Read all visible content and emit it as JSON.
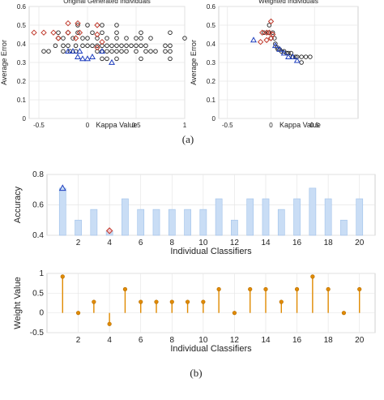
{
  "captions": {
    "a": "(a)",
    "b": "(b)"
  },
  "colors": {
    "black_marker": "#222222",
    "red_marker": "#c0392b",
    "blue_marker": "#1f3fbf",
    "bar_fill": "#c9ddf5",
    "bar_edge": "#9fc1ea",
    "stem": "#e08a00",
    "grid": "#e6e6e6"
  },
  "chart_data": [
    {
      "id": "scatter_original",
      "type": "scatter",
      "title": "Original Generated Individuals",
      "xlabel": "Kappa Value",
      "ylabel": "Average Error",
      "xlim": [
        -0.6,
        1
      ],
      "ylim": [
        0,
        0.6
      ],
      "xticks": [
        -0.5,
        0,
        0.5,
        1
      ],
      "xtick_labels": [
        "-0.5",
        "0",
        "0.5",
        "1"
      ],
      "yticks": [
        0,
        0.1,
        0.2,
        0.3,
        0.4,
        0.5,
        0.6
      ],
      "ytick_labels": [
        "0",
        "0.1",
        "0.2",
        "0.3",
        "0.4",
        "0.5",
        "0.6"
      ],
      "grid": true,
      "series": [
        {
          "marker": "circle",
          "color": "black",
          "points": [
            [
              -0.1,
              0.5
            ],
            [
              0,
              0.5
            ],
            [
              0.15,
              0.5
            ],
            [
              0.3,
              0.5
            ],
            [
              -0.3,
              0.46
            ],
            [
              -0.2,
              0.46
            ],
            [
              -0.1,
              0.46
            ],
            [
              0.05,
              0.46
            ],
            [
              0.15,
              0.46
            ],
            [
              0.3,
              0.46
            ],
            [
              0.55,
              0.46
            ],
            [
              0.85,
              0.46
            ],
            [
              -0.3,
              0.43
            ],
            [
              -0.25,
              0.43
            ],
            [
              -0.15,
              0.43
            ],
            [
              -0.05,
              0.43
            ],
            [
              0.0,
              0.43
            ],
            [
              0.1,
              0.43
            ],
            [
              0.2,
              0.43
            ],
            [
              0.3,
              0.43
            ],
            [
              0.4,
              0.43
            ],
            [
              0.5,
              0.43
            ],
            [
              0.55,
              0.43
            ],
            [
              0.65,
              0.43
            ],
            [
              1.0,
              0.43
            ],
            [
              -0.33,
              0.39
            ],
            [
              -0.25,
              0.39
            ],
            [
              -0.2,
              0.39
            ],
            [
              -0.12,
              0.39
            ],
            [
              -0.05,
              0.39
            ],
            [
              0.0,
              0.39
            ],
            [
              0.05,
              0.39
            ],
            [
              0.1,
              0.39
            ],
            [
              0.15,
              0.39
            ],
            [
              0.2,
              0.39
            ],
            [
              0.25,
              0.39
            ],
            [
              0.3,
              0.39
            ],
            [
              0.35,
              0.39
            ],
            [
              0.4,
              0.39
            ],
            [
              0.45,
              0.39
            ],
            [
              0.5,
              0.39
            ],
            [
              0.55,
              0.39
            ],
            [
              0.6,
              0.39
            ],
            [
              0.8,
              0.39
            ],
            [
              0.85,
              0.39
            ],
            [
              -0.45,
              0.36
            ],
            [
              -0.4,
              0.36
            ],
            [
              -0.25,
              0.36
            ],
            [
              -0.18,
              0.36
            ],
            [
              -0.12,
              0.36
            ],
            [
              0.1,
              0.36
            ],
            [
              0.15,
              0.36
            ],
            [
              0.2,
              0.36
            ],
            [
              0.25,
              0.36
            ],
            [
              0.3,
              0.36
            ],
            [
              0.35,
              0.36
            ],
            [
              0.4,
              0.36
            ],
            [
              0.5,
              0.36
            ],
            [
              0.6,
              0.36
            ],
            [
              0.65,
              0.36
            ],
            [
              0.7,
              0.36
            ],
            [
              0.8,
              0.36
            ],
            [
              0.85,
              0.36
            ],
            [
              0.15,
              0.32
            ],
            [
              0.2,
              0.32
            ],
            [
              0.3,
              0.32
            ],
            [
              0.55,
              0.32
            ],
            [
              0.85,
              0.32
            ]
          ]
        },
        {
          "marker": "diamond",
          "color": "red",
          "points": [
            [
              -0.2,
              0.51
            ],
            [
              -0.1,
              0.51
            ],
            [
              0.1,
              0.5
            ],
            [
              -0.55,
              0.46
            ],
            [
              -0.45,
              0.46
            ],
            [
              -0.35,
              0.46
            ],
            [
              -0.2,
              0.46
            ],
            [
              -0.08,
              0.46
            ],
            [
              0.1,
              0.45
            ],
            [
              -0.3,
              0.43
            ],
            [
              -0.12,
              0.43
            ],
            [
              0.15,
              0.41
            ],
            [
              0.1,
              0.38
            ]
          ]
        },
        {
          "marker": "triangle",
          "color": "blue",
          "points": [
            [
              -0.2,
              0.36
            ],
            [
              -0.15,
              0.36
            ],
            [
              -0.08,
              0.36
            ],
            [
              -0.1,
              0.33
            ],
            [
              -0.05,
              0.32
            ],
            [
              0.0,
              0.32
            ],
            [
              0.05,
              0.33
            ],
            [
              0.15,
              0.36
            ],
            [
              0.25,
              0.3
            ]
          ]
        }
      ]
    },
    {
      "id": "scatter_weighted",
      "type": "scatter",
      "title": "Weighted Individuals",
      "xlabel": "Kappa Value",
      "ylabel": "Average Error",
      "xlim": [
        -0.6,
        1
      ],
      "ylim": [
        0,
        0.6
      ],
      "xticks": [
        -0.5,
        0,
        0.5
      ],
      "xtick_labels": [
        "-0.5",
        "0",
        "0.5"
      ],
      "yticks": [
        0,
        0.1,
        0.2,
        0.3,
        0.4,
        0.5,
        0.6
      ],
      "ytick_labels": [
        "0",
        "0.1",
        "0.2",
        "0.3",
        "0.4",
        "0.5",
        "0.6"
      ],
      "grid": true,
      "series": [
        {
          "marker": "circle",
          "color": "black",
          "points": [
            [
              -0.02,
              0.5
            ],
            [
              -0.08,
              0.46
            ],
            [
              -0.03,
              0.46
            ],
            [
              0.02,
              0.46
            ],
            [
              0.0,
              0.43
            ],
            [
              0.04,
              0.43
            ],
            [
              0.05,
              0.4
            ],
            [
              0.07,
              0.38
            ],
            [
              0.08,
              0.37
            ],
            [
              0.1,
              0.37
            ],
            [
              0.12,
              0.36
            ],
            [
              0.15,
              0.36
            ],
            [
              0.18,
              0.35
            ],
            [
              0.2,
              0.35
            ],
            [
              0.23,
              0.35
            ],
            [
              0.25,
              0.33
            ],
            [
              0.28,
              0.33
            ],
            [
              0.3,
              0.33
            ],
            [
              0.35,
              0.33
            ],
            [
              0.4,
              0.33
            ],
            [
              0.45,
              0.33
            ],
            [
              0.35,
              0.3
            ]
          ]
        },
        {
          "marker": "diamond",
          "color": "red",
          "points": [
            [
              0.0,
              0.52
            ],
            [
              -0.1,
              0.46
            ],
            [
              -0.05,
              0.46
            ],
            [
              -0.02,
              0.46
            ],
            [
              0.02,
              0.45
            ],
            [
              0.0,
              0.43
            ],
            [
              -0.12,
              0.41
            ],
            [
              -0.05,
              0.42
            ]
          ]
        },
        {
          "marker": "triangle",
          "color": "blue",
          "points": [
            [
              -0.2,
              0.42
            ],
            [
              0.05,
              0.39
            ],
            [
              0.1,
              0.37
            ],
            [
              0.15,
              0.35
            ],
            [
              0.2,
              0.33
            ],
            [
              0.25,
              0.33
            ],
            [
              0.3,
              0.31
            ]
          ]
        }
      ]
    },
    {
      "id": "accuracy_bar",
      "type": "bar",
      "xlabel": "Individual Classifiers",
      "ylabel": "Accuracy",
      "x": [
        1,
        2,
        3,
        4,
        5,
        6,
        7,
        8,
        9,
        10,
        11,
        12,
        13,
        14,
        15,
        16,
        17,
        18,
        19,
        20
      ],
      "values": [
        0.71,
        0.5,
        0.57,
        0.43,
        0.64,
        0.57,
        0.57,
        0.57,
        0.57,
        0.57,
        0.64,
        0.5,
        0.64,
        0.64,
        0.57,
        0.64,
        0.71,
        0.64,
        0.5,
        0.64
      ],
      "ylim": [
        0.4,
        0.8
      ],
      "xlim": [
        0,
        21
      ],
      "xticks": [
        2,
        4,
        6,
        8,
        10,
        12,
        14,
        16,
        18,
        20
      ],
      "xtick_labels": [
        "2",
        "4",
        "6",
        "8",
        "10",
        "12",
        "14",
        "16",
        "18",
        "20"
      ],
      "yticks": [
        0.4,
        0.6,
        0.8
      ],
      "ytick_labels": [
        "0.4",
        "0.6",
        "0.8"
      ],
      "grid": true,
      "markers": [
        {
          "x": 1,
          "y": 0.71,
          "marker": "triangle",
          "color": "blue"
        },
        {
          "x": 4,
          "y": 0.43,
          "marker": "diamond",
          "color": "red"
        }
      ]
    },
    {
      "id": "weight_stem",
      "type": "stem",
      "xlabel": "Individual Classifiers",
      "ylabel": "Weight Value",
      "x": [
        1,
        2,
        3,
        4,
        5,
        6,
        7,
        8,
        9,
        10,
        11,
        12,
        13,
        14,
        15,
        16,
        17,
        18,
        19,
        20
      ],
      "values": [
        0.92,
        0.0,
        0.28,
        -0.28,
        0.6,
        0.28,
        0.28,
        0.28,
        0.28,
        0.28,
        0.6,
        0.0,
        0.6,
        0.6,
        0.28,
        0.6,
        0.92,
        0.6,
        0.0,
        0.6
      ],
      "ylim": [
        -0.5,
        1
      ],
      "xlim": [
        0,
        21
      ],
      "xticks": [
        2,
        4,
        6,
        8,
        10,
        12,
        14,
        16,
        18,
        20
      ],
      "xtick_labels": [
        "2",
        "4",
        "6",
        "8",
        "10",
        "12",
        "14",
        "16",
        "18",
        "20"
      ],
      "yticks": [
        -0.5,
        0,
        0.5,
        1
      ],
      "ytick_labels": [
        "-0.5",
        "0",
        "0.5",
        "1"
      ],
      "grid": true
    }
  ]
}
